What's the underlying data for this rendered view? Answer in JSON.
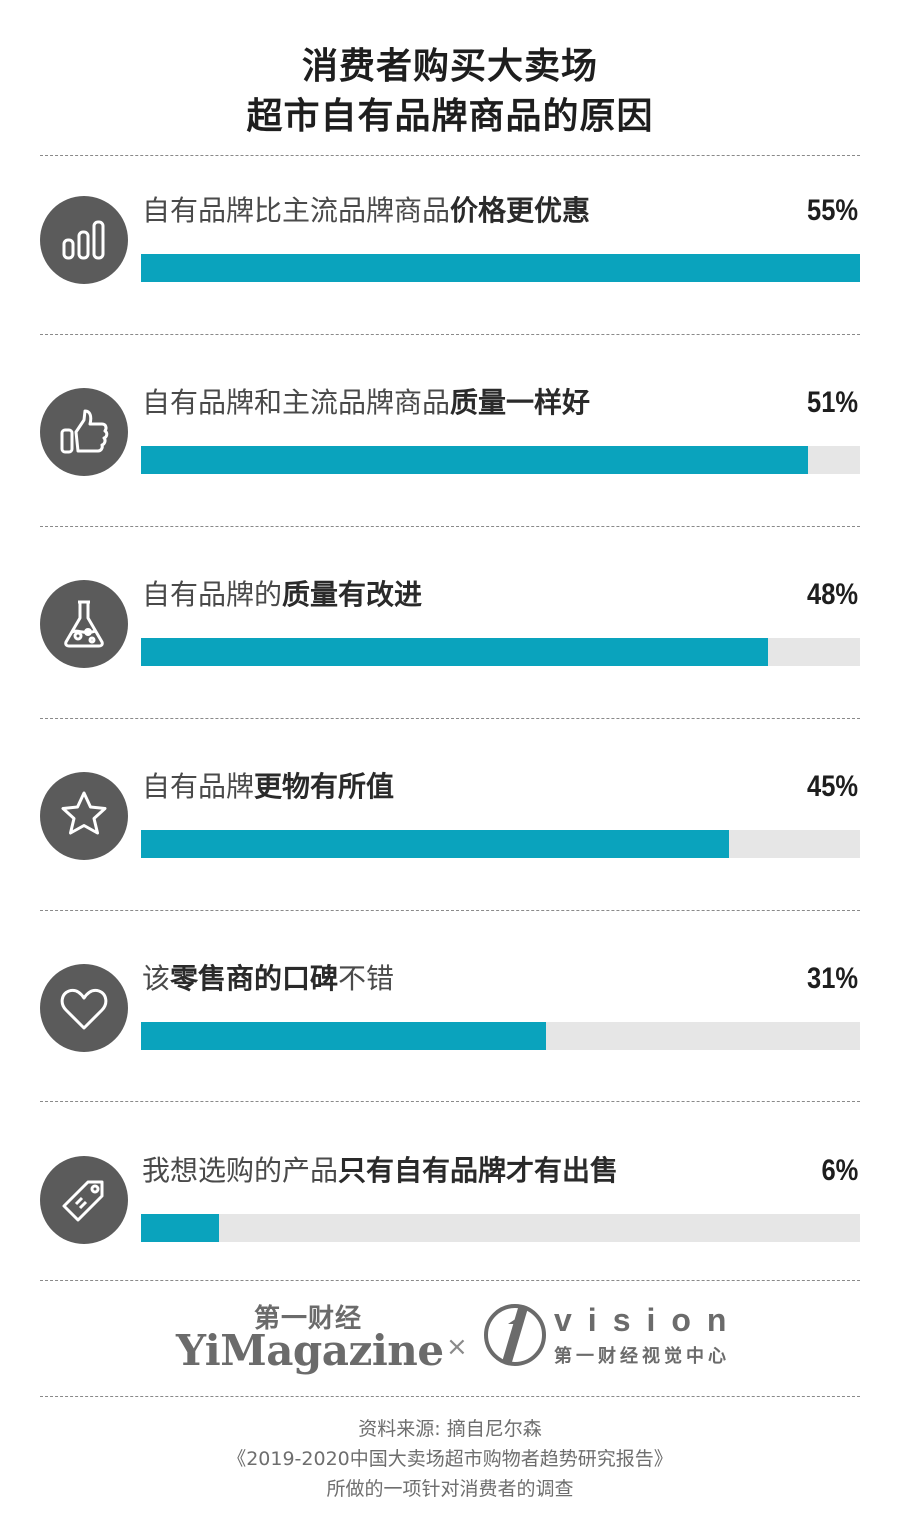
{
  "title": {
    "line1": "消费者购买大卖场",
    "line2": "超市自有品牌商品的原因"
  },
  "chart_data": {
    "type": "bar",
    "orientation": "horizontal",
    "title": "消费者购买大卖场超市自有品牌商品的原因",
    "categories": [
      "自有品牌比主流品牌商品价格更优惠",
      "自有品牌和主流品牌商品质量一样好",
      "自有品牌的质量有改进",
      "自有品牌更物有所值",
      "该零售商的口碑不错",
      "我想选购的产品只有自有品牌才有出售"
    ],
    "values": [
      55,
      51,
      48,
      45,
      31,
      6
    ],
    "value_labels": [
      "55%",
      "51%",
      "48%",
      "45%",
      "31%",
      "6%"
    ],
    "unit": "%",
    "xlim": [
      0,
      55
    ],
    "bar_color": "#0aa3bd",
    "track_color": "#e6e6e6",
    "grid": false,
    "legend": "none"
  },
  "rows": [
    {
      "label_plain": "自有品牌比主流品牌商品",
      "label_bold": "价格更优惠",
      "label_tail": "",
      "pct": "55%",
      "icon": "bar-chart-icon"
    },
    {
      "label_plain": "自有品牌和主流品牌商品",
      "label_bold": "质量一样好",
      "label_tail": "",
      "pct": "51%",
      "icon": "thumbs-up-icon"
    },
    {
      "label_plain": "自有品牌的",
      "label_bold": "质量有改进",
      "label_tail": "",
      "pct": "48%",
      "icon": "flask-icon"
    },
    {
      "label_plain": "自有品牌",
      "label_bold": "更物有所值",
      "label_tail": "",
      "pct": "45%",
      "icon": "star-icon"
    },
    {
      "label_plain": "该",
      "label_bold": "零售商的口碑",
      "label_tail": "不错",
      "pct": "31%",
      "icon": "heart-icon"
    },
    {
      "label_plain": "我想选购的产品",
      "label_bold": "只有自有品牌才有出售",
      "label_tail": "",
      "pct": "6%",
      "icon": "price-tag-icon"
    }
  ],
  "logos": {
    "yimagazine_cn": "第一财经",
    "yimagazine_en": "YiMagazine",
    "separator": "×",
    "vision_en": "vision",
    "vision_cn": "第一财经视觉中心"
  },
  "source": {
    "line1": "资料来源: 摘自尼尔森",
    "line2": "《2019-2020中国大卖场超市购物者趋势研究报告》",
    "line3": "所做的一项针对消费者的调查"
  }
}
